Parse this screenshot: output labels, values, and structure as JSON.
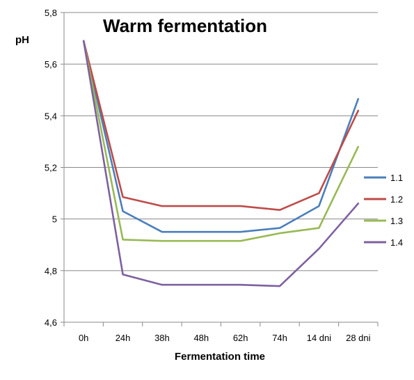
{
  "chart_data": {
    "type": "line",
    "title": "Warm fermentation",
    "xlabel": "Fermentation time",
    "ylabel": "pH",
    "categories": [
      "0h",
      "24h",
      "38h",
      "48h",
      "62h",
      "74h",
      "14 dni",
      "28 dni"
    ],
    "ylim": [
      4.6,
      5.8
    ],
    "yticks": [
      "4,6",
      "4,8",
      "5",
      "5,2",
      "5,4",
      "5,6",
      "5,8"
    ],
    "grid": true,
    "legend_position": "right",
    "series": [
      {
        "name": "1.1",
        "color": "#4a7ebb",
        "values": [
          5.69,
          5.03,
          4.95,
          null,
          4.95,
          4.965,
          5.05,
          5.465
        ]
      },
      {
        "name": "1.2",
        "color": "#be4b48",
        "values": [
          5.69,
          5.085,
          5.05,
          null,
          5.05,
          5.035,
          5.1,
          5.42
        ]
      },
      {
        "name": "1.3",
        "color": "#98b954",
        "values": [
          5.69,
          4.92,
          4.915,
          null,
          4.915,
          4.945,
          4.965,
          5.28
        ]
      },
      {
        "name": "1.4",
        "color": "#7d60a0",
        "values": [
          5.69,
          4.785,
          4.745,
          null,
          4.745,
          4.74,
          4.885,
          5.06
        ]
      }
    ]
  }
}
